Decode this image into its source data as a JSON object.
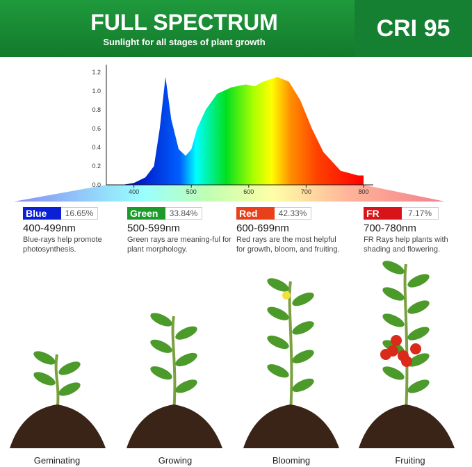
{
  "header": {
    "title": "FULL SPECTRUM",
    "subtitle": "Sunlight for all stages of plant growth",
    "badge": "CRI 95"
  },
  "chart_data": {
    "type": "area",
    "title": "",
    "xlabel": "",
    "ylabel": "",
    "xlim": [
      352,
      800
    ],
    "ylim": [
      0,
      1.2
    ],
    "xticks": [
      "400",
      "500",
      "600",
      "700",
      "800"
    ],
    "yticks": [
      "0.0",
      "0.2",
      "0.4",
      "0.6",
      "0.8",
      "1.0",
      "1.2"
    ],
    "x": [
      380,
      400,
      420,
      435,
      445,
      455,
      465,
      478,
      490,
      500,
      510,
      525,
      545,
      570,
      595,
      610,
      625,
      650,
      670,
      690,
      710,
      730,
      760,
      790,
      800
    ],
    "y": [
      0,
      0.02,
      0.08,
      0.2,
      0.6,
      1.15,
      0.7,
      0.38,
      0.31,
      0.38,
      0.6,
      0.8,
      0.97,
      1.04,
      1.07,
      1.05,
      1.1,
      1.15,
      1.1,
      0.9,
      0.6,
      0.35,
      0.15,
      0.1,
      0.1
    ]
  },
  "bands": [
    {
      "name": "Blue",
      "percent": "16.65%",
      "range": "400-499nm",
      "desc": "Blue-rays help promote photosynthesis.",
      "color": "#0a1fd6"
    },
    {
      "name": "Green",
      "percent": "33.84%",
      "range": "500-599nm",
      "desc": "Green rays are meaning-ful for plant morphology.",
      "color": "#1c9a2a"
    },
    {
      "name": "Red",
      "percent": "42.33%",
      "range": "600-699nm",
      "desc": "Red rays are the most helpful for growth, bloom, and fruiting.",
      "color": "#e8401a"
    },
    {
      "name": "FR",
      "percent": "7.17%",
      "range": "700-780nm",
      "desc": "FR Rays help plants with shading and flowering.",
      "color": "#d8141a"
    }
  ],
  "stages": [
    "Geminating",
    "Growing",
    "Blooming",
    "Fruiting"
  ]
}
